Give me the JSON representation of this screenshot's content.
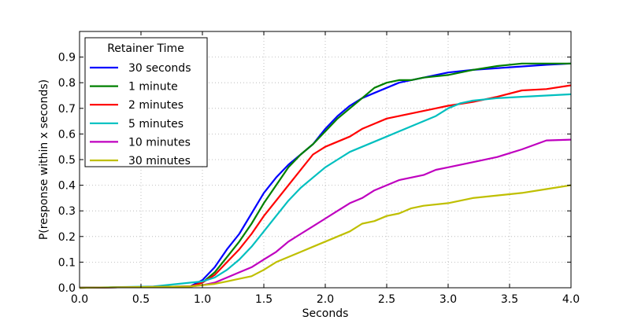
{
  "chart_data": {
    "type": "line",
    "title": "",
    "xlabel": "Seconds",
    "ylabel": "P(response within x seconds)",
    "xlim": [
      0.0,
      4.0
    ],
    "ylim": [
      0.0,
      1.0
    ],
    "x_ticks": [
      0.0,
      0.5,
      1.0,
      1.5,
      2.0,
      2.5,
      3.0,
      3.5,
      4.0
    ],
    "x_tick_labels": [
      "0.0",
      "0.5",
      "1.0",
      "1.5",
      "2.0",
      "2.5",
      "3.0",
      "3.5",
      "4.0"
    ],
    "y_ticks": [
      0.0,
      0.1,
      0.2,
      0.3,
      0.4,
      0.5,
      0.6,
      0.7,
      0.8,
      0.9
    ],
    "y_tick_labels": [
      "0.0",
      "0.1",
      "0.2",
      "0.3",
      "0.4",
      "0.5",
      "0.6",
      "0.7",
      "0.8",
      "0.9"
    ],
    "grid": true,
    "legend_title": "Retainer Time",
    "legend_position": "top-left",
    "series": [
      {
        "name": "30 seconds",
        "color": "#0000ff",
        "points": [
          [
            0.0,
            0.0
          ],
          [
            0.9,
            0.005
          ],
          [
            1.0,
            0.03
          ],
          [
            1.1,
            0.08
          ],
          [
            1.2,
            0.15
          ],
          [
            1.3,
            0.21
          ],
          [
            1.4,
            0.29
          ],
          [
            1.5,
            0.37
          ],
          [
            1.6,
            0.43
          ],
          [
            1.7,
            0.48
          ],
          [
            1.8,
            0.52
          ],
          [
            1.9,
            0.56
          ],
          [
            2.0,
            0.62
          ],
          [
            2.1,
            0.67
          ],
          [
            2.2,
            0.71
          ],
          [
            2.3,
            0.74
          ],
          [
            2.4,
            0.76
          ],
          [
            2.5,
            0.78
          ],
          [
            2.6,
            0.8
          ],
          [
            2.7,
            0.81
          ],
          [
            2.8,
            0.82
          ],
          [
            2.9,
            0.83
          ],
          [
            3.0,
            0.84
          ],
          [
            3.2,
            0.85
          ],
          [
            3.5,
            0.86
          ],
          [
            3.8,
            0.87
          ],
          [
            4.0,
            0.875
          ]
        ]
      },
      {
        "name": "1 minute",
        "color": "#008000",
        "points": [
          [
            0.0,
            0.0
          ],
          [
            0.9,
            0.005
          ],
          [
            1.0,
            0.02
          ],
          [
            1.1,
            0.06
          ],
          [
            1.2,
            0.12
          ],
          [
            1.3,
            0.18
          ],
          [
            1.4,
            0.25
          ],
          [
            1.5,
            0.33
          ],
          [
            1.6,
            0.4
          ],
          [
            1.7,
            0.47
          ],
          [
            1.8,
            0.52
          ],
          [
            1.9,
            0.56
          ],
          [
            2.0,
            0.61
          ],
          [
            2.1,
            0.66
          ],
          [
            2.2,
            0.7
          ],
          [
            2.3,
            0.74
          ],
          [
            2.4,
            0.78
          ],
          [
            2.5,
            0.8
          ],
          [
            2.6,
            0.81
          ],
          [
            2.7,
            0.81
          ],
          [
            2.8,
            0.82
          ],
          [
            3.0,
            0.83
          ],
          [
            3.2,
            0.85
          ],
          [
            3.4,
            0.865
          ],
          [
            3.6,
            0.875
          ],
          [
            4.0,
            0.875
          ]
        ]
      },
      {
        "name": "2 minutes",
        "color": "#ff0000",
        "points": [
          [
            0.0,
            0.0
          ],
          [
            0.9,
            0.005
          ],
          [
            1.0,
            0.02
          ],
          [
            1.1,
            0.05
          ],
          [
            1.2,
            0.1
          ],
          [
            1.3,
            0.15
          ],
          [
            1.4,
            0.21
          ],
          [
            1.5,
            0.28
          ],
          [
            1.6,
            0.34
          ],
          [
            1.7,
            0.4
          ],
          [
            1.8,
            0.46
          ],
          [
            1.9,
            0.52
          ],
          [
            2.0,
            0.55
          ],
          [
            2.1,
            0.57
          ],
          [
            2.2,
            0.59
          ],
          [
            2.3,
            0.62
          ],
          [
            2.4,
            0.64
          ],
          [
            2.5,
            0.66
          ],
          [
            2.6,
            0.67
          ],
          [
            2.7,
            0.68
          ],
          [
            2.8,
            0.69
          ],
          [
            2.9,
            0.7
          ],
          [
            3.0,
            0.71
          ],
          [
            3.2,
            0.725
          ],
          [
            3.4,
            0.745
          ],
          [
            3.6,
            0.77
          ],
          [
            3.8,
            0.775
          ],
          [
            4.0,
            0.79
          ]
        ]
      },
      {
        "name": "5 minutes",
        "color": "#00bfbf",
        "points": [
          [
            0.0,
            0.0
          ],
          [
            0.6,
            0.005
          ],
          [
            0.8,
            0.015
          ],
          [
            1.0,
            0.025
          ],
          [
            1.1,
            0.04
          ],
          [
            1.2,
            0.07
          ],
          [
            1.3,
            0.11
          ],
          [
            1.4,
            0.16
          ],
          [
            1.5,
            0.22
          ],
          [
            1.6,
            0.28
          ],
          [
            1.7,
            0.34
          ],
          [
            1.8,
            0.39
          ],
          [
            1.9,
            0.43
          ],
          [
            2.0,
            0.47
          ],
          [
            2.1,
            0.5
          ],
          [
            2.2,
            0.53
          ],
          [
            2.3,
            0.55
          ],
          [
            2.4,
            0.57
          ],
          [
            2.5,
            0.59
          ],
          [
            2.6,
            0.61
          ],
          [
            2.7,
            0.63
          ],
          [
            2.8,
            0.65
          ],
          [
            2.9,
            0.67
          ],
          [
            3.0,
            0.7
          ],
          [
            3.1,
            0.72
          ],
          [
            3.2,
            0.73
          ],
          [
            3.4,
            0.74
          ],
          [
            3.6,
            0.745
          ],
          [
            3.8,
            0.75
          ],
          [
            4.0,
            0.755
          ]
        ]
      },
      {
        "name": "10 minutes",
        "color": "#bf00bf",
        "points": [
          [
            0.0,
            0.0
          ],
          [
            0.9,
            0.005
          ],
          [
            1.0,
            0.01
          ],
          [
            1.1,
            0.02
          ],
          [
            1.2,
            0.04
          ],
          [
            1.3,
            0.06
          ],
          [
            1.4,
            0.08
          ],
          [
            1.5,
            0.11
          ],
          [
            1.6,
            0.14
          ],
          [
            1.7,
            0.18
          ],
          [
            1.8,
            0.21
          ],
          [
            1.9,
            0.24
          ],
          [
            2.0,
            0.27
          ],
          [
            2.1,
            0.3
          ],
          [
            2.2,
            0.33
          ],
          [
            2.3,
            0.35
          ],
          [
            2.4,
            0.38
          ],
          [
            2.5,
            0.4
          ],
          [
            2.6,
            0.42
          ],
          [
            2.7,
            0.43
          ],
          [
            2.8,
            0.44
          ],
          [
            2.9,
            0.46
          ],
          [
            3.0,
            0.47
          ],
          [
            3.2,
            0.49
          ],
          [
            3.4,
            0.51
          ],
          [
            3.6,
            0.54
          ],
          [
            3.8,
            0.575
          ],
          [
            4.0,
            0.578
          ]
        ]
      },
      {
        "name": "30 minutes",
        "color": "#bfbf00",
        "points": [
          [
            0.0,
            0.0
          ],
          [
            0.9,
            0.005
          ],
          [
            1.0,
            0.01
          ],
          [
            1.1,
            0.015
          ],
          [
            1.2,
            0.025
          ],
          [
            1.3,
            0.035
          ],
          [
            1.4,
            0.045
          ],
          [
            1.5,
            0.07
          ],
          [
            1.6,
            0.1
          ],
          [
            1.7,
            0.12
          ],
          [
            1.8,
            0.14
          ],
          [
            1.9,
            0.16
          ],
          [
            2.0,
            0.18
          ],
          [
            2.1,
            0.2
          ],
          [
            2.2,
            0.22
          ],
          [
            2.3,
            0.25
          ],
          [
            2.4,
            0.26
          ],
          [
            2.5,
            0.28
          ],
          [
            2.6,
            0.29
          ],
          [
            2.7,
            0.31
          ],
          [
            2.8,
            0.32
          ],
          [
            3.0,
            0.33
          ],
          [
            3.1,
            0.34
          ],
          [
            3.2,
            0.35
          ],
          [
            3.4,
            0.36
          ],
          [
            3.6,
            0.37
          ],
          [
            3.8,
            0.385
          ],
          [
            4.0,
            0.4
          ]
        ]
      }
    ]
  }
}
